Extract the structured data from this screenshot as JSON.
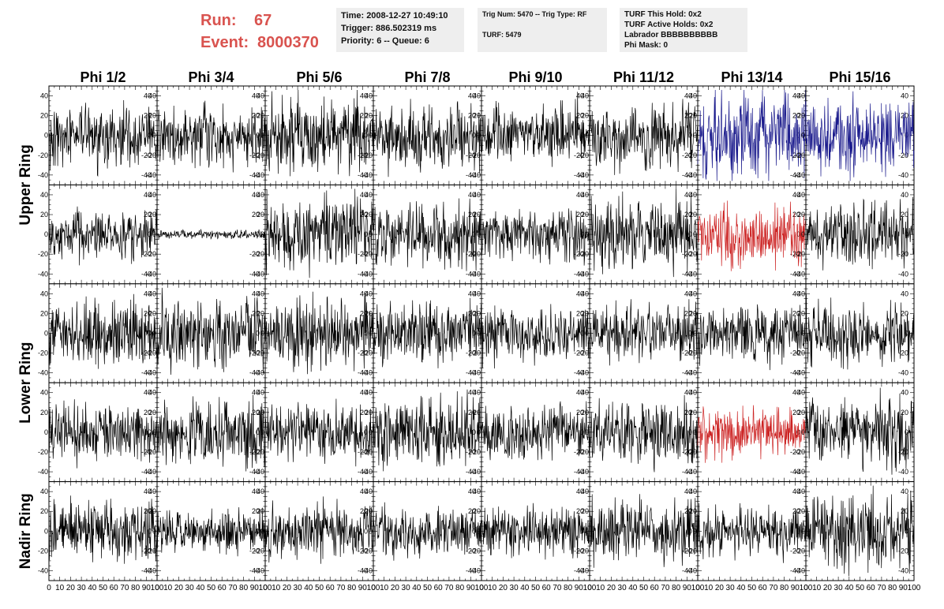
{
  "header": {
    "run_label": "Run:",
    "run_value": "67",
    "event_label": "Event:",
    "event_value": "8000370",
    "box1": [
      "Time: 2008-12-27 10:49:10",
      "Trigger: 886.502319 ms",
      "Priority: 6 -- Queue: 6"
    ],
    "box2_line1": "Trig Num: 5470 -- Trig Type: RF",
    "box2_line2": "TURF: 5479",
    "box3": [
      "TURF This Hold: 0x2",
      "TURF Active Holds: 0x2",
      "Labrador BBBBBBBBBB",
      "Phi Mask: 0"
    ]
  },
  "colors": {
    "header_accent": "#d9534f",
    "trace_default": "#000000",
    "trace_blue": "#1a1a8c",
    "trace_red": "#cc2222",
    "info_bg": "#eeeeee"
  },
  "chart_data": {
    "type": "line",
    "columns": [
      "Phi 1/2",
      "Phi 3/4",
      "Phi 5/6",
      "Phi 7/8",
      "Phi 9/10",
      "Phi 11/12",
      "Phi 13/14",
      "Phi 15/16"
    ],
    "rows": [
      "Upper Ring",
      "Upper Ring",
      "Lower Ring",
      "Lower Ring",
      "Nadir Ring"
    ],
    "ring_labels": [
      "Upper Ring",
      "Lower Ring",
      "Nadir Ring"
    ],
    "xlim": [
      0,
      100
    ],
    "ylim": [
      -50,
      50
    ],
    "y_ticks": [
      -40,
      -20,
      0,
      20,
      40
    ],
    "y_tick_labels": [
      "-40",
      "-20",
      "0",
      "20",
      "40"
    ],
    "x_tick_labels": [
      "0",
      "10",
      "20",
      "30",
      "40",
      "50",
      "60",
      "70",
      "80",
      "90",
      "100"
    ],
    "samples_per_trace": 260,
    "amplitudes": [
      [
        18,
        16,
        22,
        18,
        18,
        18,
        24,
        22
      ],
      [
        14,
        2.5,
        20,
        18,
        16,
        22,
        18,
        18
      ],
      [
        18,
        20,
        20,
        18,
        16,
        16,
        18,
        18
      ],
      [
        16,
        20,
        16,
        20,
        16,
        18,
        14,
        20
      ],
      [
        18,
        12,
        16,
        14,
        14,
        18,
        14,
        22
      ]
    ],
    "trace_colors": [
      [
        "black",
        "black",
        "black",
        "black",
        "black",
        "black",
        "blue",
        "blue"
      ],
      [
        "black",
        "black",
        "black",
        "black",
        "black",
        "black",
        "red",
        "black"
      ],
      [
        "black",
        "black",
        "black",
        "black",
        "black",
        "black",
        "black",
        "black"
      ],
      [
        "black",
        "black",
        "black",
        "black",
        "black",
        "black",
        "red",
        "black"
      ],
      [
        "black",
        "black",
        "black",
        "black",
        "black",
        "black",
        "black",
        "black"
      ]
    ]
  }
}
